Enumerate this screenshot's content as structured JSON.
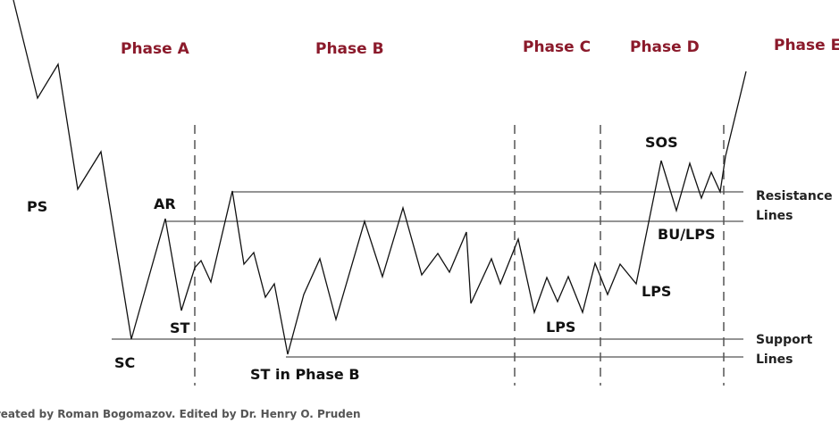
{
  "phases": [
    "Phase A",
    "Phase B",
    "Phase C",
    "Phase D",
    "Phase E"
  ],
  "labels": {
    "ps": "PS",
    "ar": "AR",
    "sc": "SC",
    "st": "ST",
    "st_phase_b": "ST in Phase B",
    "lps_c": "LPS",
    "lps_d": "LPS",
    "sos": "SOS",
    "bu_lps": "BU/LPS"
  },
  "resistance_label": {
    "line1": "Resistance",
    "line2": "Lines"
  },
  "support_label": {
    "line1": "Support",
    "line2": "Lines"
  },
  "credit": "Created by Roman Bogomazov. Edited by Dr. Henry O. Pruden"
}
